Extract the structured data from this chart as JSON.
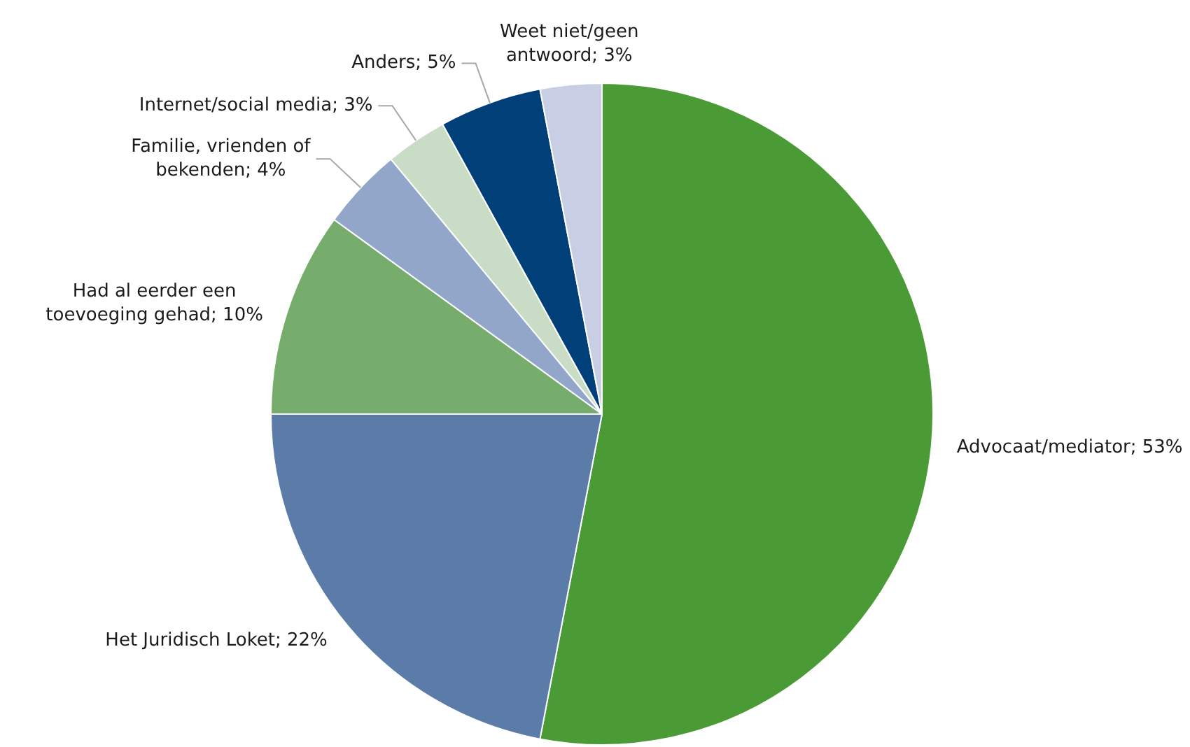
{
  "chart_data": {
    "type": "pie",
    "categories": [
      "Advocaat/mediator",
      "Het Juridisch Loket",
      "Had al eerder een toevoeging gehad",
      "Familie, vrienden of bekenden",
      "Internet/social media",
      "Anders",
      "Weet niet/geen antwoord"
    ],
    "values": [
      53,
      22,
      10,
      4,
      3,
      5,
      3
    ],
    "value_labels": [
      "53%",
      "22%",
      "10%",
      "4%",
      "3%",
      "5%",
      "3%"
    ],
    "colors": [
      "#4a9a35",
      "#5b7ca8",
      "#76ad6c",
      "#91a6c8",
      "#c9dcc5",
      "#003f78",
      "#c8cee3"
    ],
    "legend": false
  }
}
